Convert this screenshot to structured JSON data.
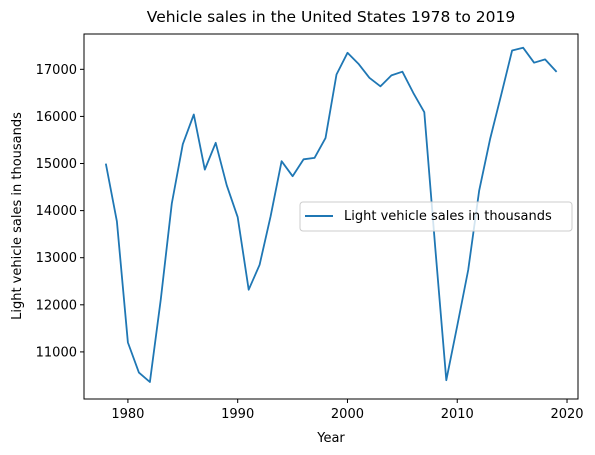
{
  "chart_data": {
    "type": "line",
    "title": "Vehicle sales in the United States 1978 to 2019",
    "xlabel": "Year",
    "ylabel": "Light vehicle sales in thousands",
    "xlim": [
      1976,
      2021
    ],
    "ylim": [
      10000,
      17750
    ],
    "xticks": [
      1980,
      1990,
      2000,
      2010,
      2020
    ],
    "yticks": [
      11000,
      12000,
      13000,
      14000,
      15000,
      16000,
      17000
    ],
    "grid": false,
    "legend_position": "center-right",
    "series": [
      {
        "name": "Light vehicle sales in thousands",
        "color": "#1f77b4",
        "x": [
          1978,
          1979,
          1980,
          1981,
          1982,
          1983,
          1984,
          1985,
          1986,
          1987,
          1988,
          1989,
          1990,
          1991,
          1992,
          1993,
          1994,
          1995,
          1996,
          1997,
          1998,
          1999,
          2000,
          2001,
          2002,
          2003,
          2004,
          2005,
          2006,
          2007,
          2008,
          2009,
          2010,
          2011,
          2012,
          2013,
          2014,
          2015,
          2016,
          2017,
          2018,
          2019
        ],
        "y": [
          14980,
          13770,
          11200,
          10560,
          10360,
          12120,
          14150,
          15410,
          16040,
          14870,
          15440,
          14540,
          13860,
          12320,
          12850,
          13880,
          15050,
          14730,
          15090,
          15120,
          15540,
          16890,
          17350,
          17120,
          16820,
          16640,
          16870,
          16950,
          16500,
          16090,
          13200,
          10400,
          11550,
          12740,
          14430,
          15530,
          16460,
          17400,
          17460,
          17140,
          17210,
          16960
        ]
      }
    ]
  }
}
